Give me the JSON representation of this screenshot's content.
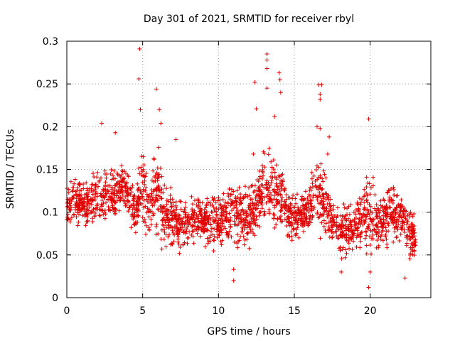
{
  "chart_data": {
    "type": "scatter",
    "title": "Day 301 of 2021, SRMTID for receiver rbyl",
    "xlabel": "GPS time / hours",
    "ylabel": "SRMTID / TECUs",
    "xlim": [
      0,
      24
    ],
    "ylim": [
      0,
      0.3
    ],
    "xticks": [
      "0",
      "5",
      "10",
      "15",
      "20"
    ],
    "yticks": [
      "0",
      "0.05",
      "0.1",
      "0.15",
      "0.2",
      "0.25",
      "0.3"
    ],
    "grid": true,
    "marker": "plus",
    "color": "#e00000",
    "series": [
      {
        "name": "SRMTID",
        "description": "Dense scatter of SRMTID values sampled through the day; envelope (hour: [typical low, typical high]) read from the figure",
        "x": [
          0.0,
          0.5,
          1.0,
          1.5,
          2.0,
          2.5,
          3.0,
          3.5,
          4.0,
          4.5,
          5.0,
          5.5,
          6.0,
          6.5,
          7.0,
          7.5,
          8.0,
          8.5,
          9.0,
          9.5,
          10.0,
          10.5,
          11.0,
          11.5,
          12.0,
          12.5,
          13.0,
          13.5,
          14.0,
          14.5,
          15.0,
          15.5,
          16.0,
          16.5,
          17.0,
          17.5,
          18.0,
          18.5,
          19.0,
          19.5,
          20.0,
          20.5,
          21.0,
          21.5,
          22.0,
          22.5,
          23.0
        ],
        "y_low": [
          0.07,
          0.08,
          0.08,
          0.07,
          0.07,
          0.08,
          0.08,
          0.09,
          0.09,
          0.06,
          0.07,
          0.06,
          0.05,
          0.04,
          0.05,
          0.05,
          0.05,
          0.05,
          0.05,
          0.05,
          0.05,
          0.05,
          0.05,
          0.05,
          0.05,
          0.06,
          0.07,
          0.07,
          0.07,
          0.06,
          0.05,
          0.06,
          0.07,
          0.07,
          0.06,
          0.06,
          0.04,
          0.04,
          0.04,
          0.05,
          0.04,
          0.04,
          0.05,
          0.06,
          0.06,
          0.04,
          0.04
        ],
        "y_high": [
          0.14,
          0.16,
          0.14,
          0.15,
          0.17,
          0.16,
          0.16,
          0.17,
          0.16,
          0.13,
          0.2,
          0.15,
          0.2,
          0.16,
          0.14,
          0.12,
          0.12,
          0.13,
          0.13,
          0.13,
          0.13,
          0.14,
          0.15,
          0.14,
          0.14,
          0.15,
          0.19,
          0.18,
          0.17,
          0.14,
          0.13,
          0.13,
          0.15,
          0.19,
          0.16,
          0.12,
          0.11,
          0.12,
          0.12,
          0.15,
          0.16,
          0.13,
          0.14,
          0.14,
          0.13,
          0.13,
          0.1
        ],
        "peaks": [
          {
            "x": 4.8,
            "y": 0.291
          },
          {
            "x": 4.75,
            "y": 0.256
          },
          {
            "x": 4.85,
            "y": 0.22
          },
          {
            "x": 5.9,
            "y": 0.244
          },
          {
            "x": 6.1,
            "y": 0.22
          },
          {
            "x": 6.2,
            "y": 0.204
          },
          {
            "x": 7.2,
            "y": 0.185
          },
          {
            "x": 2.3,
            "y": 0.204
          },
          {
            "x": 3.2,
            "y": 0.193
          },
          {
            "x": 11.0,
            "y": 0.02
          },
          {
            "x": 11.0,
            "y": 0.033
          },
          {
            "x": 12.3,
            "y": 0.168
          },
          {
            "x": 12.4,
            "y": 0.252
          },
          {
            "x": 12.5,
            "y": 0.221
          },
          {
            "x": 13.2,
            "y": 0.285
          },
          {
            "x": 13.2,
            "y": 0.278
          },
          {
            "x": 13.2,
            "y": 0.268
          },
          {
            "x": 13.2,
            "y": 0.245
          },
          {
            "x": 13.7,
            "y": 0.212
          },
          {
            "x": 14.0,
            "y": 0.263
          },
          {
            "x": 14.05,
            "y": 0.255
          },
          {
            "x": 14.1,
            "y": 0.24
          },
          {
            "x": 16.6,
            "y": 0.249
          },
          {
            "x": 16.8,
            "y": 0.249
          },
          {
            "x": 16.7,
            "y": 0.238
          },
          {
            "x": 16.7,
            "y": 0.232
          },
          {
            "x": 16.5,
            "y": 0.2
          },
          {
            "x": 16.7,
            "y": 0.198
          },
          {
            "x": 17.3,
            "y": 0.188
          },
          {
            "x": 17.2,
            "y": 0.168
          },
          {
            "x": 19.9,
            "y": 0.209
          },
          {
            "x": 19.9,
            "y": 0.012
          },
          {
            "x": 20.0,
            "y": 0.03
          },
          {
            "x": 18.1,
            "y": 0.03
          },
          {
            "x": 22.3,
            "y": 0.023
          }
        ]
      }
    ]
  }
}
